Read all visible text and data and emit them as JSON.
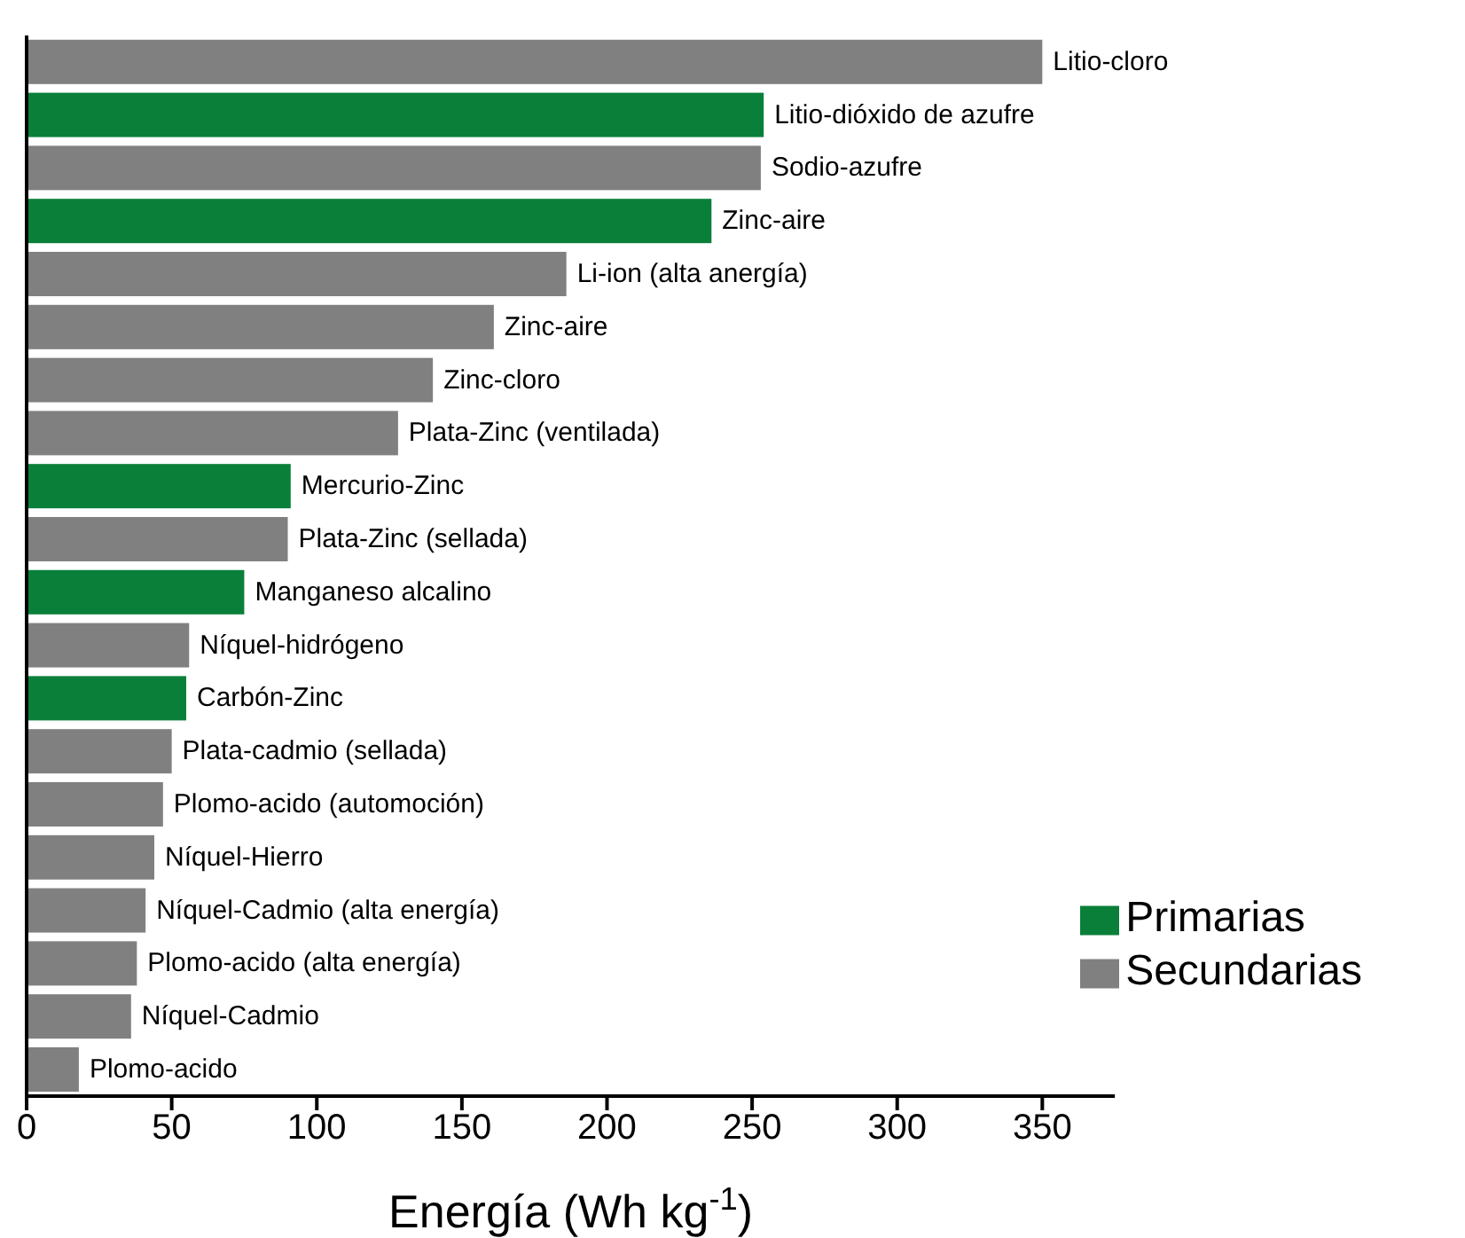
{
  "chart_data": {
    "type": "bar",
    "orientation": "horizontal",
    "xlabel": "Energía (Wh kg$^{-1}$)",
    "categories": [
      "Litio-cloro",
      "Litio-dióxido de azufre",
      "Sodio-azufre",
      "Zinc-aire",
      "Li-ion (alta anergía)",
      "Zinc-aire",
      "Zinc-cloro",
      "Plata-Zinc (ventilada)",
      "Mercurio-Zinc",
      "Plata-Zinc (sellada)",
      "Manganeso alcalino",
      "Níquel-hidrógeno",
      "Carbón-Zinc",
      "Plata-cadmio (sellada)",
      "Plomo-acido (automoción)",
      "Níquel-Hierro",
      "Níquel-Cadmio (alta energía)",
      "Plomo-acido (alta energía)",
      "Níquel-Cadmio",
      "Plomo-acido"
    ],
    "series": [
      {
        "name": "Primarias",
        "color": "#0a7f3a",
        "values": [
          null,
          254,
          null,
          236,
          null,
          null,
          null,
          null,
          91,
          null,
          75,
          null,
          55,
          null,
          null,
          null,
          null,
          null,
          null,
          null
        ]
      },
      {
        "name": "Secundarias",
        "color": "#808080",
        "values": [
          350,
          null,
          253,
          null,
          186,
          161,
          140,
          128,
          null,
          90,
          null,
          56,
          null,
          50,
          47,
          44,
          41,
          38,
          36,
          18
        ]
      }
    ],
    "xlim": [
      0,
      375
    ],
    "xticks": [
      0,
      50,
      100,
      150,
      200,
      250,
      300,
      350
    ],
    "tick_labels": "x",
    "grid": false,
    "legend": "bottom right"
  }
}
